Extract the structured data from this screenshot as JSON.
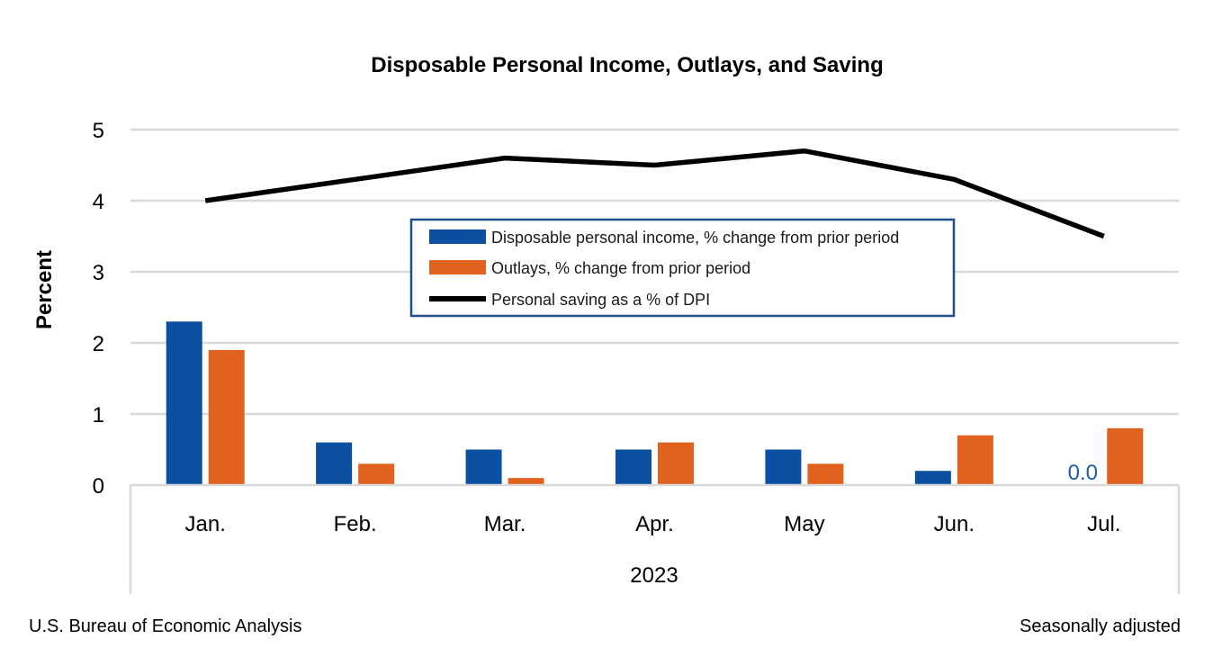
{
  "chart_data": {
    "type": "bar",
    "title": "Disposable Personal Income, Outlays, and Saving",
    "ylabel": "Percent",
    "xlabel": "2023",
    "ylim": [
      0,
      5
    ],
    "yticks": [
      0,
      1,
      2,
      3,
      4,
      5
    ],
    "grid": true,
    "categories": [
      "Jan.",
      "Feb.",
      "Mar.",
      "Apr.",
      "May",
      "Jun.",
      "Jul."
    ],
    "series": [
      {
        "name": "Disposable personal income, % change from prior period",
        "kind": "bar",
        "color": "#0b4fa0",
        "values": [
          2.3,
          0.6,
          0.5,
          0.5,
          0.5,
          0.2,
          0.0
        ]
      },
      {
        "name": "Outlays, % change from prior period",
        "kind": "bar",
        "color": "#e0621e",
        "values": [
          1.9,
          0.3,
          0.1,
          0.6,
          0.3,
          0.7,
          0.8
        ]
      },
      {
        "name": "Personal saving as a % of DPI",
        "kind": "line",
        "color": "#000000",
        "values": [
          4.0,
          4.3,
          4.6,
          4.5,
          4.7,
          4.3,
          3.5
        ]
      }
    ],
    "annotations": [
      {
        "text": "0.0",
        "category": "Jul.",
        "series": "Disposable personal income, % change from prior period",
        "color": "#1f5fa6"
      }
    ],
    "legend_position": "center"
  },
  "footer": {
    "source": "U.S. Bureau of Economic Analysis",
    "note": "Seasonally adjusted"
  }
}
